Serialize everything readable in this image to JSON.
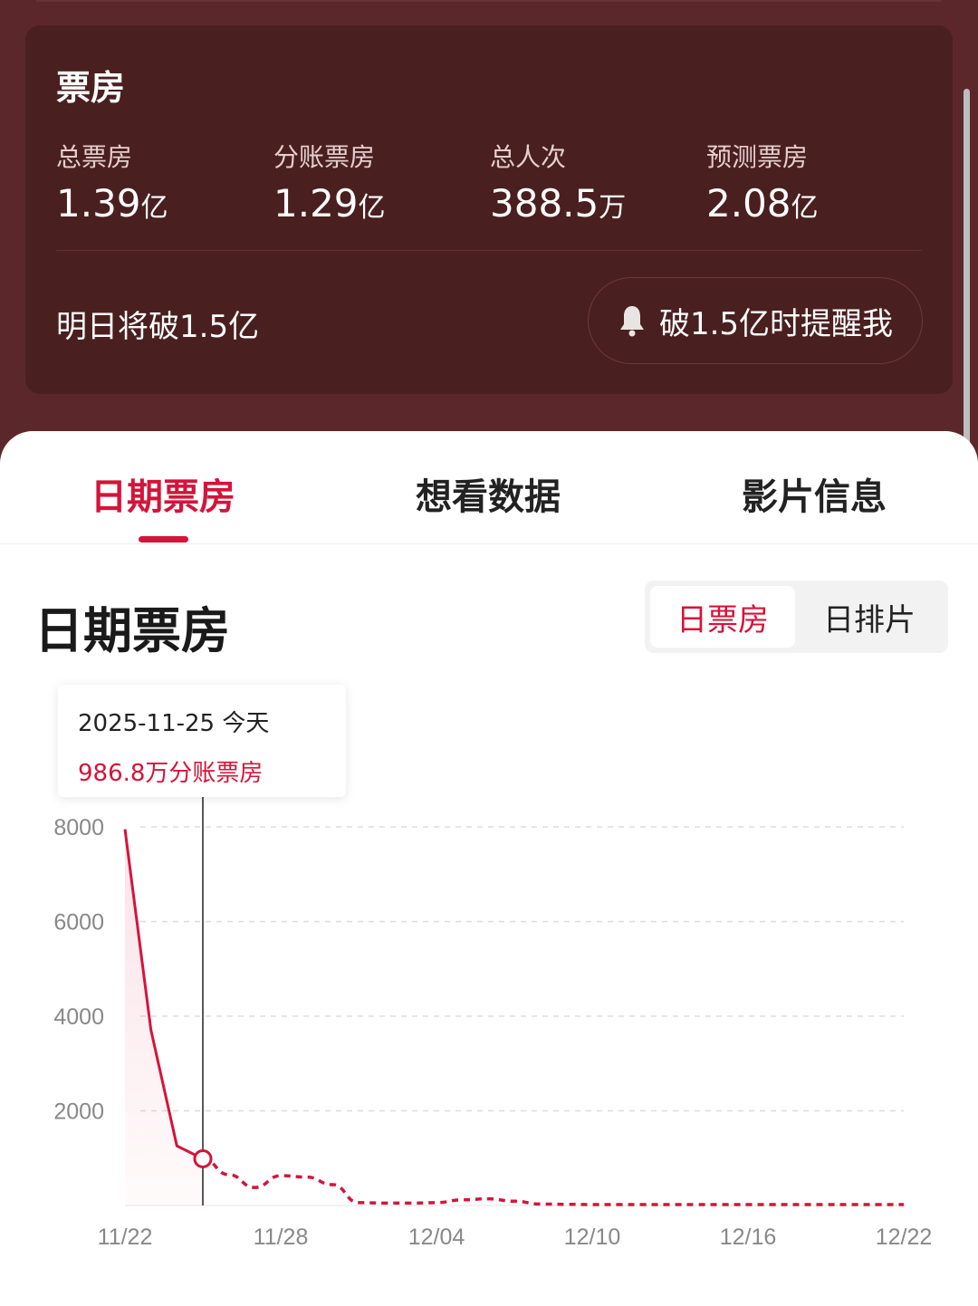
{
  "box_office": {
    "title": "票房",
    "stats": [
      {
        "label": "总票房",
        "value": "1.39",
        "unit": "亿"
      },
      {
        "label": "分账票房",
        "value": "1.29",
        "unit": "亿"
      },
      {
        "label": "总人次",
        "value": "388.5",
        "unit": "万"
      },
      {
        "label": "预测票房",
        "value": "2.08",
        "unit": "亿"
      }
    ],
    "forecast_text": "明日将破1.5亿",
    "remind_button": "破1.5亿时提醒我",
    "remind_icon": "bell-icon"
  },
  "tabs": [
    {
      "label": "日期票房",
      "active": true
    },
    {
      "label": "想看数据"
    },
    {
      "label": "影片信息"
    }
  ],
  "section": {
    "title": "日期票房",
    "toggle": [
      {
        "label": "日票房",
        "active": true
      },
      {
        "label": "日排片"
      }
    ]
  },
  "tooltip": {
    "date": "2025-11-25 今天",
    "value": "986.8万分账票房"
  },
  "colors": {
    "accent": "#d4143a",
    "header_bg": "#5c272a",
    "card_bg": "#4a1f20"
  },
  "chart_data": {
    "type": "line",
    "x_start": "11/22",
    "x_end": "12/22",
    "x_ticks": [
      "11/22",
      "11/28",
      "12/04",
      "12/10",
      "12/16",
      "12/22"
    ],
    "y_ticks": [
      "8000",
      "6000",
      "4000",
      "2000"
    ],
    "ylim": [
      0,
      8000
    ],
    "unit": "万",
    "grid": true,
    "actual_until": "11/25",
    "values": [
      7950,
      3710,
      1260,
      986.8,
      650,
      380,
      630,
      600,
      440,
      60,
      50,
      50,
      60,
      120,
      140,
      90,
      30,
      25,
      20,
      20,
      20,
      20,
      20,
      20,
      20,
      20,
      20,
      20,
      20,
      20,
      20
    ]
  }
}
